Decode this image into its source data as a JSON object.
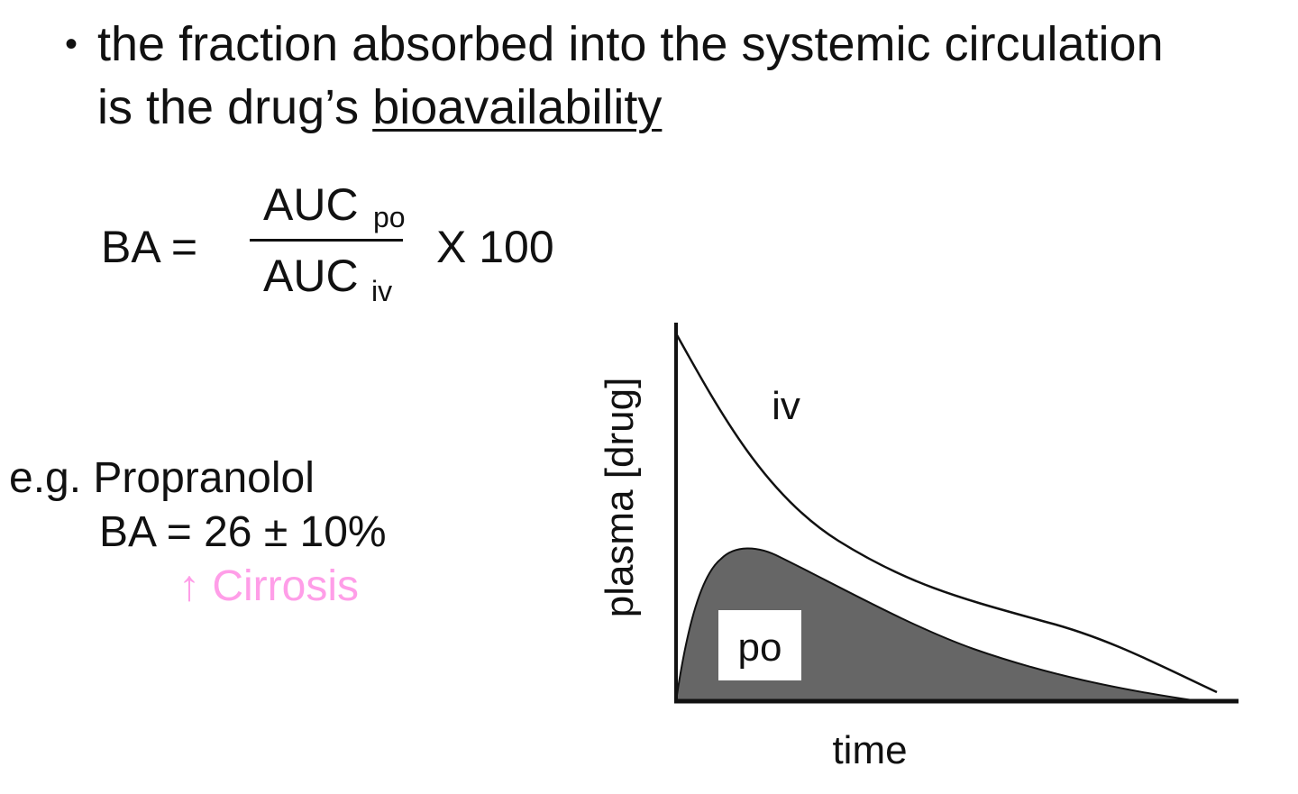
{
  "bullet": {
    "marker": "•",
    "line1": "the fraction absorbed into the systemic circulation",
    "line2_prefix": "is the drug’s ",
    "line2_term": "bioavailability"
  },
  "formula": {
    "lhs": "BA =",
    "numerator": "AUC",
    "numerator_sub": "po",
    "denominator": "AUC",
    "denominator_sub": "iv",
    "multiplier": "X 100"
  },
  "example": {
    "line1": "e.g. Propranolol",
    "line2": "BA = 26 ± 10%",
    "line3": "↑ Cirrosis",
    "note_color": "#ff9ee8"
  },
  "chart_data": {
    "type": "area",
    "title": "",
    "xlabel": "time",
    "ylabel": "plasma [drug]",
    "series": [
      {
        "name": "iv",
        "description_color": "#ffffff"
      },
      {
        "name": "po",
        "description_color": "#666666"
      }
    ],
    "fill_color_po": "#666666",
    "line_color_iv": "#111111"
  }
}
